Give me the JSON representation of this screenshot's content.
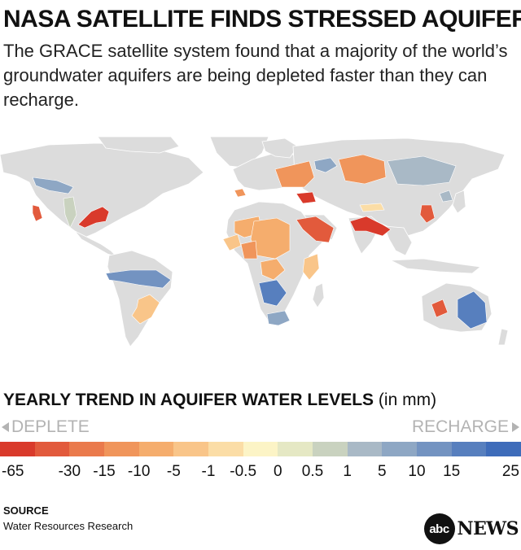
{
  "header": {
    "title": "NASA SATELLITE FINDS STRESSED AQUIFERS",
    "subtitle": "The GRACE satellite system found that a majority of the world’s groundwater aquifers are being depleted faster than they can recharge."
  },
  "legend": {
    "title_bold": "YEARLY TREND IN AQUIFER WATER LEVELS",
    "title_unit": "(in mm)",
    "deplete_label": "DEPLETE",
    "recharge_label": "RECHARGE",
    "colors": [
      "#d93a2b",
      "#e25a3c",
      "#ea7a4c",
      "#f0955b",
      "#f5ad6d",
      "#f9c589",
      "#fbdda6",
      "#fcf4c6",
      "#e5e8c4",
      "#c9d2bf",
      "#a9b9c6",
      "#8ea7c4",
      "#7393c1",
      "#577fbe",
      "#3e6cba"
    ],
    "ticks": [
      "-65",
      "-30",
      "-15",
      "-10",
      "-5",
      "-1",
      "-0.5",
      "0",
      "0.5",
      "1",
      "5",
      "10",
      "15",
      "25"
    ]
  },
  "map": {
    "land_color": "#dcdcdc",
    "aquifers": [
      {
        "name": "central-valley-aquifer",
        "level": -30
      },
      {
        "name": "ogallala-aquifer",
        "level": 0.5
      },
      {
        "name": "great-basin-aquifer",
        "level": 5
      },
      {
        "name": "gulf-coast-aquifer",
        "level": -65
      },
      {
        "name": "amazon-basin-aquifer",
        "level": 10
      },
      {
        "name": "guarani-aquifer",
        "level": -1
      },
      {
        "name": "russian-platform-aquifer",
        "level": -5
      },
      {
        "name": "caspian-aquifer",
        "level": -65
      },
      {
        "name": "west-siberian-aquifer",
        "level": 1
      },
      {
        "name": "north-china-plain-aquifer",
        "level": -30
      },
      {
        "name": "arabian-aquifer",
        "level": -30
      },
      {
        "name": "indus-basin-aquifer",
        "level": -65
      },
      {
        "name": "nubian-aquifer",
        "level": -5
      },
      {
        "name": "congo-basin-aquifer",
        "level": 15
      },
      {
        "name": "kalahari-aquifer",
        "level": 5
      },
      {
        "name": "great-artesian-basin",
        "level": 15
      },
      {
        "name": "canning-basin-aquifer",
        "level": -30
      }
    ]
  },
  "source": {
    "heading": "SOURCE",
    "text": "Water Resources Research"
  },
  "logo": {
    "abc": "abc",
    "news": "NEWS"
  }
}
